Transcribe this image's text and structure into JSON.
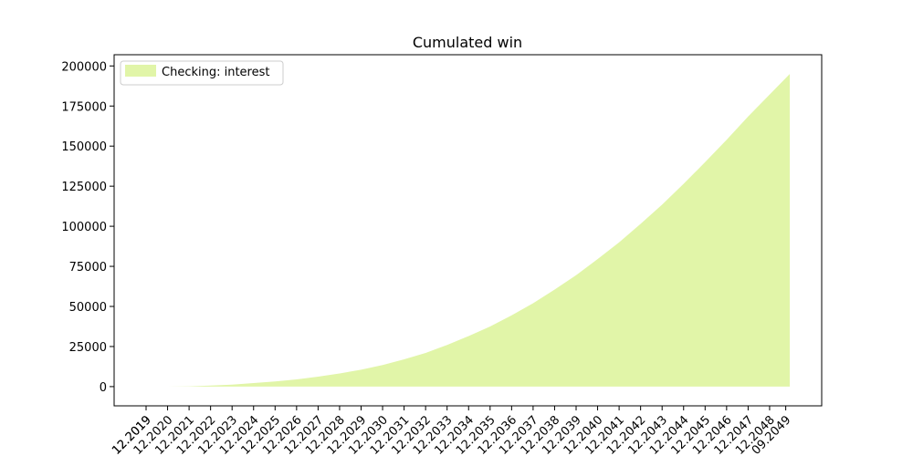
{
  "chart_data": {
    "type": "area",
    "title": "Cumulated win",
    "xlabel": "",
    "ylabel": "",
    "x_ticks": [
      "12.2019",
      "12.2019",
      "12.2020",
      "12.2021",
      "12.2022",
      "12.2023",
      "12.2024",
      "12.2025",
      "12.2026",
      "12.2027",
      "12.2028",
      "12.2029",
      "12.2030",
      "12.2031",
      "12.2032",
      "12.2033",
      "12.2034",
      "12.2035",
      "12.2036",
      "12.2037",
      "12.2038",
      "12.2039",
      "12.2040",
      "12.2041",
      "12.2042",
      "12.2043",
      "12.2044",
      "12.2045",
      "12.2046",
      "12.2047",
      "12.2048",
      "09.2049"
    ],
    "y_ticks": [
      0,
      25000,
      50000,
      75000,
      100000,
      125000,
      150000,
      175000,
      200000
    ],
    "ylim": [
      -12000,
      207000
    ],
    "legend": {
      "position": "upper-left",
      "entries": [
        "Checking: interest"
      ]
    },
    "grid": false,
    "series": [
      {
        "name": "Checking: interest",
        "color": "#e1f5a8",
        "x": [
          "12.2020",
          "12.2021",
          "12.2022",
          "12.2023",
          "12.2024",
          "12.2025",
          "12.2026",
          "12.2027",
          "12.2028",
          "12.2029",
          "12.2030",
          "12.2031",
          "12.2032",
          "12.2033",
          "12.2034",
          "12.2035",
          "12.2036",
          "12.2037",
          "12.2038",
          "12.2039",
          "12.2040",
          "12.2041",
          "12.2042",
          "12.2043",
          "12.2044",
          "12.2045",
          "12.2046",
          "12.2047",
          "09.2049"
        ],
        "values": [
          0,
          200,
          600,
          1200,
          2200,
          3200,
          4500,
          6200,
          8200,
          10500,
          13500,
          17000,
          21000,
          26000,
          31500,
          37500,
          44500,
          52000,
          60500,
          69500,
          79500,
          90000,
          101500,
          113500,
          126500,
          140000,
          154000,
          168500,
          195000
        ]
      }
    ]
  }
}
